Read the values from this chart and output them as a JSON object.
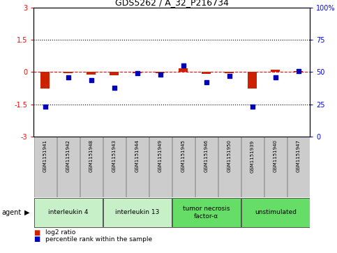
{
  "title": "GDS5262 / A_32_P216734",
  "samples": [
    "GSM1151941",
    "GSM1151942",
    "GSM1151948",
    "GSM1151943",
    "GSM1151944",
    "GSM1151949",
    "GSM1151945",
    "GSM1151946",
    "GSM1151950",
    "GSM1151939",
    "GSM1151940",
    "GSM1151947"
  ],
  "log2_ratio": [
    -0.75,
    -0.05,
    -0.1,
    -0.15,
    -0.05,
    -0.05,
    0.18,
    -0.08,
    -0.05,
    -0.75,
    0.1,
    0.05
  ],
  "percentile_rank": [
    23,
    46,
    44,
    38,
    49,
    48,
    55,
    42,
    47,
    23,
    46,
    51
  ],
  "ylim_left": [
    -3,
    3
  ],
  "ylim_right": [
    0,
    100
  ],
  "yticks_left": [
    -3,
    -1.5,
    0,
    1.5,
    3
  ],
  "ytick_labels_left": [
    "-3",
    "-1.5",
    "0",
    "1.5",
    "3"
  ],
  "yticks_right": [
    0,
    25,
    50,
    75,
    100
  ],
  "ytick_labels_right": [
    "0",
    "25",
    "50",
    "75",
    "100%"
  ],
  "agent_groups": [
    {
      "label": "interleukin 4",
      "start": 0,
      "end": 3,
      "color": "#c8f0c8"
    },
    {
      "label": "interleukin 13",
      "start": 3,
      "end": 6,
      "color": "#c8f0c8"
    },
    {
      "label": "tumor necrosis\nfactor-α",
      "start": 6,
      "end": 9,
      "color": "#66dd66"
    },
    {
      "label": "unstimulated",
      "start": 9,
      "end": 12,
      "color": "#66dd66"
    }
  ],
  "bar_color_red": "#cc2200",
  "dot_color_blue": "#0000bb",
  "legend_red_label": "log2 ratio",
  "legend_blue_label": "percentile rank within the sample",
  "bar_width": 0.4,
  "dot_size": 22,
  "sample_box_color": "#cccccc",
  "sample_box_edge": "#888888"
}
